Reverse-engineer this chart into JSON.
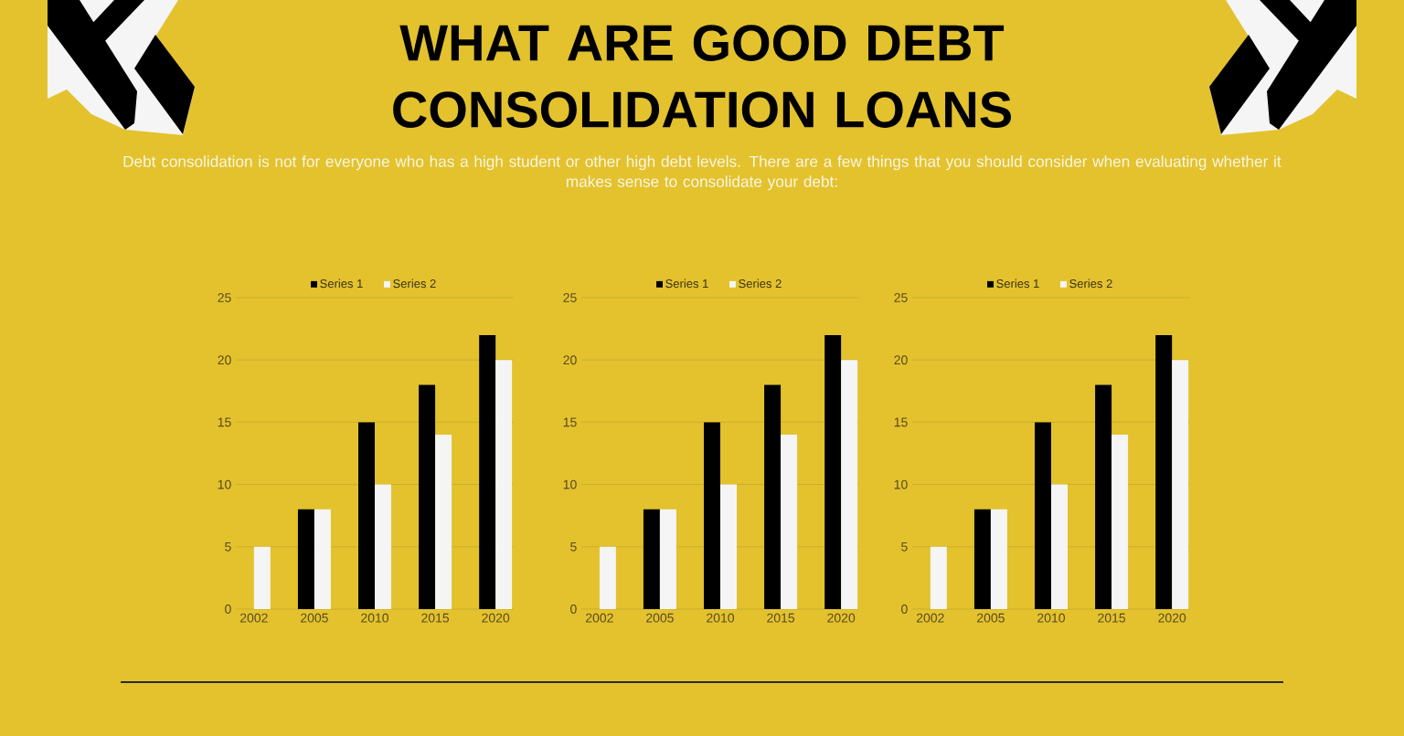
{
  "chart_data": [
    {
      "type": "bar",
      "title": "WHAT ARE GOOD DEBT CONSOLIDATION LOANS",
      "subtitle": "Debt consolidation is not for everyone who has a high student or other high debt levels. There are a few things that you should consider when evaluating whether it makes sense to consolidate your debt:",
      "categories": [
        "2002",
        "2005",
        "2010",
        "2015",
        "2020"
      ],
      "series": [
        {
          "name": "Series 1",
          "color": "#000000",
          "values": [
            null,
            8,
            15,
            18,
            22
          ]
        },
        {
          "name": "Series 2",
          "color": "#f5f5f5",
          "values": [
            5,
            8,
            10,
            14,
            20
          ]
        }
      ],
      "ylim": [
        0,
        25
      ],
      "yticks": [
        0,
        5,
        10,
        15,
        20,
        25
      ],
      "grid": "y",
      "legend": "top"
    },
    {
      "type": "bar",
      "categories": [
        "2002",
        "2005",
        "2010",
        "2015",
        "2020"
      ],
      "series": [
        {
          "name": "Series 1",
          "color": "#000000",
          "values": [
            null,
            8,
            15,
            18,
            22
          ]
        },
        {
          "name": "Series 2",
          "color": "#f5f5f5",
          "values": [
            5,
            8,
            10,
            14,
            20
          ]
        }
      ],
      "ylim": [
        0,
        25
      ],
      "yticks": [
        0,
        5,
        10,
        15,
        20,
        25
      ],
      "grid": "y",
      "legend": "top"
    },
    {
      "type": "bar",
      "categories": [
        "2002",
        "2005",
        "2010",
        "2015",
        "2020"
      ],
      "series": [
        {
          "name": "Series 1",
          "color": "#000000",
          "values": [
            null,
            8,
            15,
            18,
            22
          ]
        },
        {
          "name": "Series 2",
          "color": "#f5f5f5",
          "values": [
            5,
            8,
            10,
            14,
            20
          ]
        }
      ],
      "ylim": [
        0,
        25
      ],
      "yticks": [
        0,
        5,
        10,
        15,
        20,
        25
      ],
      "grid": "y",
      "legend": "top"
    }
  ]
}
